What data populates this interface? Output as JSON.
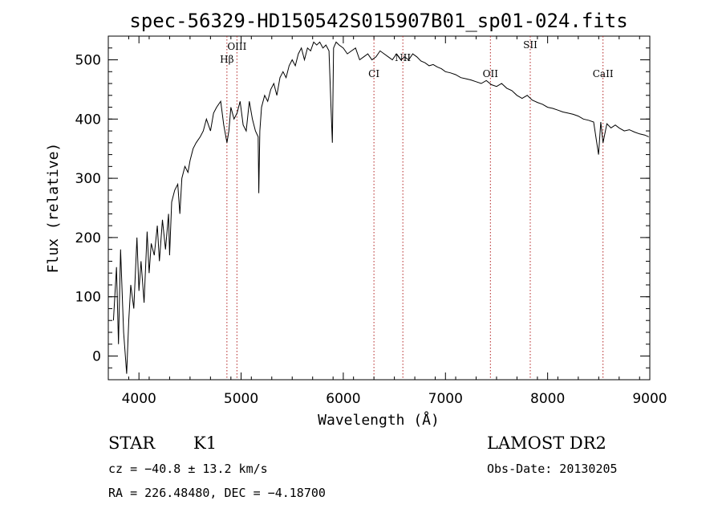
{
  "chart_data": {
    "type": "line",
    "title": "spec-56329-HD150542S015907B01_sp01-024.fits",
    "xlabel": "Wavelength (Å)",
    "ylabel": "Flux (relative)",
    "xlim": [
      3700,
      9000
    ],
    "ylim": [
      -40,
      540
    ],
    "xticks": [
      "4000",
      "5000",
      "6000",
      "7000",
      "8000",
      "9000"
    ],
    "yticks": [
      "0",
      "100",
      "200",
      "300",
      "400",
      "500"
    ],
    "grid": false,
    "series": [
      {
        "x": [
          3750,
          3780,
          3800,
          3820,
          3850,
          3880,
          3900,
          3920,
          3950,
          3980,
          4000,
          4020,
          4050,
          4080,
          4100,
          4120,
          4150,
          4180,
          4200,
          4230,
          4260,
          4290,
          4300,
          4320,
          4350,
          4380,
          4400,
          4420,
          4450,
          4480,
          4500,
          4530,
          4560,
          4600,
          4630,
          4660,
          4700,
          4730,
          4760,
          4800,
          4830,
          4861,
          4880,
          4900,
          4930,
          4960,
          4990,
          5020,
          5050,
          5080,
          5110,
          5140,
          5167,
          5173,
          5183,
          5200,
          5230,
          5260,
          5290,
          5320,
          5350,
          5380,
          5410,
          5440,
          5470,
          5500,
          5530,
          5560,
          5590,
          5620,
          5650,
          5680,
          5710,
          5740,
          5770,
          5800,
          5830,
          5860,
          5880,
          5893,
          5905,
          5930,
          5960,
          6000,
          6040,
          6080,
          6120,
          6160,
          6200,
          6240,
          6280,
          6320,
          6360,
          6400,
          6440,
          6480,
          6520,
          6563,
          6600,
          6640,
          6680,
          6720,
          6760,
          6800,
          6840,
          6880,
          6920,
          6960,
          7000,
          7050,
          7100,
          7150,
          7200,
          7250,
          7300,
          7350,
          7400,
          7450,
          7500,
          7550,
          7600,
          7650,
          7700,
          7750,
          7800,
          7850,
          7900,
          7950,
          8000,
          8050,
          8100,
          8150,
          8200,
          8250,
          8300,
          8350,
          8400,
          8450,
          8498,
          8520,
          8542,
          8580,
          8620,
          8662,
          8700,
          8750,
          8800,
          8850,
          8900,
          8950,
          8990
        ],
        "y": [
          60,
          150,
          20,
          180,
          40,
          -30,
          60,
          120,
          80,
          200,
          110,
          160,
          90,
          210,
          140,
          190,
          170,
          220,
          160,
          230,
          180,
          240,
          170,
          260,
          280,
          290,
          240,
          300,
          320,
          310,
          330,
          350,
          360,
          370,
          380,
          400,
          380,
          410,
          420,
          430,
          390,
          360,
          380,
          420,
          400,
          410,
          430,
          390,
          380,
          430,
          400,
          380,
          370,
          275,
          380,
          420,
          440,
          430,
          450,
          460,
          440,
          470,
          480,
          470,
          490,
          500,
          490,
          510,
          520,
          500,
          520,
          515,
          530,
          525,
          530,
          520,
          525,
          515,
          420,
          360,
          520,
          530,
          525,
          520,
          510,
          515,
          520,
          500,
          505,
          510,
          500,
          505,
          515,
          510,
          505,
          500,
          510,
          500,
          505,
          500,
          510,
          505,
          498,
          495,
          490,
          492,
          488,
          485,
          480,
          478,
          475,
          470,
          468,
          466,
          463,
          460,
          465,
          458,
          455,
          460,
          452,
          448,
          440,
          435,
          440,
          432,
          428,
          425,
          420,
          418,
          415,
          412,
          410,
          408,
          405,
          400,
          398,
          395,
          340,
          395,
          360,
          392,
          385,
          390,
          385,
          380,
          382,
          378,
          375,
          373,
          370
        ]
      }
    ],
    "lines": [
      {
        "label": "Hβ",
        "x": 4861
      },
      {
        "label": "OIII",
        "x": 4959
      },
      {
        "label": "CI",
        "x": 6300
      },
      {
        "label": "NII",
        "x": 6583
      },
      {
        "label": "OII",
        "x": 7440
      },
      {
        "label": "SII",
        "x": 7830
      },
      {
        "label": "CaII",
        "x": 8542
      }
    ],
    "line_color": "#b22222"
  },
  "footer": {
    "object_class": "STAR",
    "subclass": "K1",
    "survey": "LAMOST DR2",
    "cz": "cz = −40.8 ± 13.2 km/s",
    "obs_date": "Obs-Date: 20130205",
    "radec": "RA = 226.48480, DEC =  −4.18700"
  }
}
